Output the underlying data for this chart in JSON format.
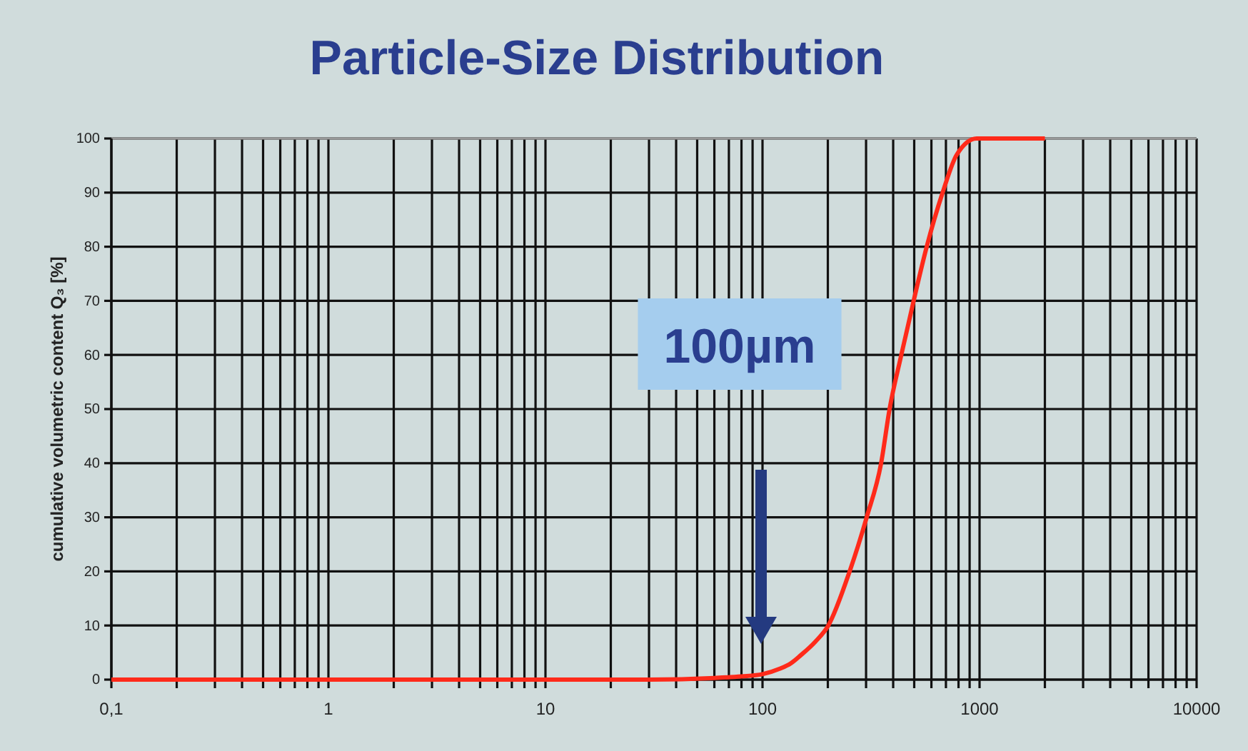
{
  "chart_data": {
    "type": "line",
    "title": "Particle-Size Distribution",
    "ylabel": "cumulative volumetric content Q₃ [%]",
    "log": "x",
    "grid": true,
    "marker": "none",
    "line_style": "solid",
    "x": [
      0.1,
      1,
      10,
      30,
      60,
      80,
      100,
      120,
      135,
      150,
      175,
      201,
      252,
      302,
      352,
      385,
      436,
      497,
      571,
      676,
      785,
      970,
      1200,
      2000
    ],
    "series": [
      {
        "color": "#ff2a1a",
        "values": [
          0,
          0,
          0,
          0,
          0.3,
          0.6,
          1,
          2,
          3,
          4.5,
          7,
          10,
          20,
          30,
          40,
          50,
          60,
          70,
          80,
          90,
          97,
          100,
          100,
          100
        ]
      }
    ],
    "xlim": [
      0.1,
      10000
    ],
    "ylim": [
      0,
      100
    ],
    "xticks": [
      {
        "value": 0.1,
        "label": "0,1"
      },
      {
        "value": 0.2,
        "label": null
      },
      {
        "value": 0.3,
        "label": null
      },
      {
        "value": 0.4,
        "label": null
      },
      {
        "value": 0.5,
        "label": null
      },
      {
        "value": 0.6,
        "label": null
      },
      {
        "value": 0.7,
        "label": null
      },
      {
        "value": 0.8,
        "label": null
      },
      {
        "value": 0.9,
        "label": null
      },
      1,
      {
        "value": 2,
        "label": null
      },
      {
        "value": 3,
        "label": null
      },
      {
        "value": 4,
        "label": null
      },
      {
        "value": 5,
        "label": null
      },
      {
        "value": 6,
        "label": null
      },
      {
        "value": 7,
        "label": null
      },
      {
        "value": 8,
        "label": null
      },
      {
        "value": 9,
        "label": null
      },
      10,
      {
        "value": 20,
        "label": null
      },
      {
        "value": 30,
        "label": null
      },
      {
        "value": 40,
        "label": null
      },
      {
        "value": 50,
        "label": null
      },
      {
        "value": 60,
        "label": null
      },
      {
        "value": 70,
        "label": null
      },
      {
        "value": 80,
        "label": null
      },
      {
        "value": 90,
        "label": null
      },
      100,
      {
        "value": 200,
        "label": null
      },
      {
        "value": 300,
        "label": null
      },
      {
        "value": 400,
        "label": null
      },
      {
        "value": 500,
        "label": null
      },
      {
        "value": 600,
        "label": null
      },
      {
        "value": 700,
        "label": null
      },
      {
        "value": 800,
        "label": null
      },
      {
        "value": 900,
        "label": null
      },
      1000,
      {
        "value": 2000,
        "label": null
      },
      {
        "value": 3000,
        "label": null
      },
      {
        "value": 4000,
        "label": null
      },
      {
        "value": 5000,
        "label": null
      },
      {
        "value": 6000,
        "label": null
      },
      {
        "value": 7000,
        "label": null
      },
      {
        "value": 8000,
        "label": null
      },
      {
        "value": 9000,
        "label": null
      },
      10000
    ],
    "yticks": [
      0,
      10,
      20,
      30,
      40,
      50,
      60,
      70,
      80,
      90,
      100
    ],
    "annotations": [
      "100µm"
    ]
  }
}
